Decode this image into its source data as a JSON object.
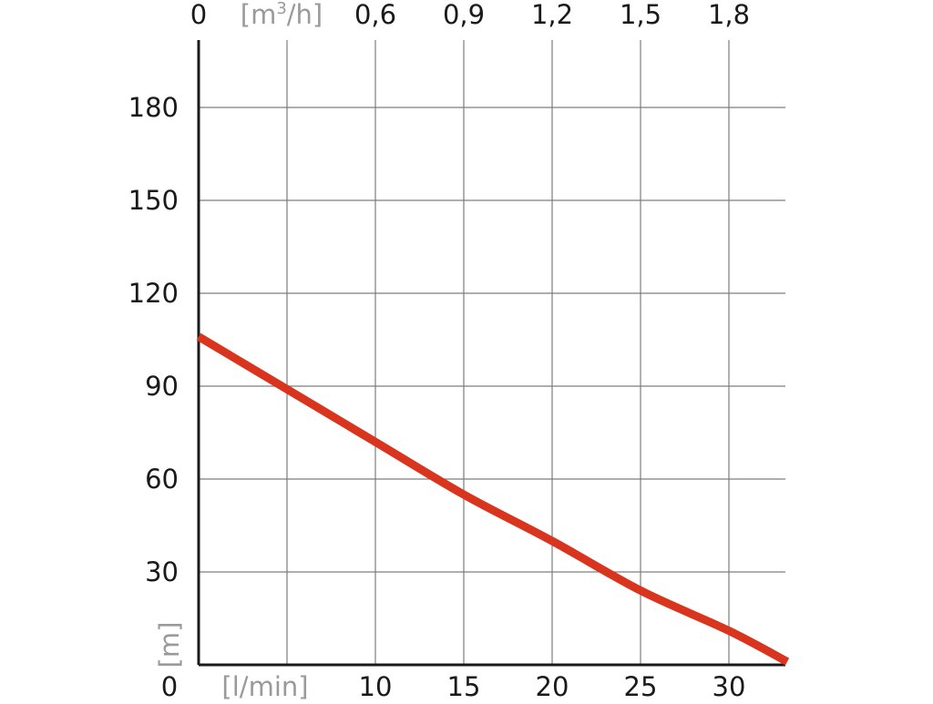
{
  "chart_data": {
    "type": "line",
    "x_axis": {
      "label": "[l/min]",
      "ticks": [
        "10",
        "15",
        "20",
        "25",
        "30"
      ],
      "lim": [
        0,
        33
      ]
    },
    "x2_axis": {
      "label": "[m³/h]",
      "ticks": [
        "0,6",
        "0,9",
        "1,2",
        "1,5",
        "1,8"
      ],
      "zero_label": "0"
    },
    "y_axis": {
      "label": "[m]",
      "ticks": [
        "30",
        "60",
        "90",
        "120",
        "150",
        "180"
      ],
      "lim": [
        0,
        200
      ]
    },
    "origin_label": "0",
    "grid": true,
    "series": [
      {
        "color": "#d8341e",
        "x": [
          0,
          5,
          10,
          15,
          20,
          25,
          30,
          33.3
        ],
        "y": [
          106,
          89,
          72,
          55,
          40,
          24,
          11,
          1
        ]
      }
    ]
  },
  "colors": {
    "curve": "#d8341e",
    "grid": "#7d7d7d",
    "axis": "#1a1a1a",
    "unit_label": "#9a9a9a"
  }
}
